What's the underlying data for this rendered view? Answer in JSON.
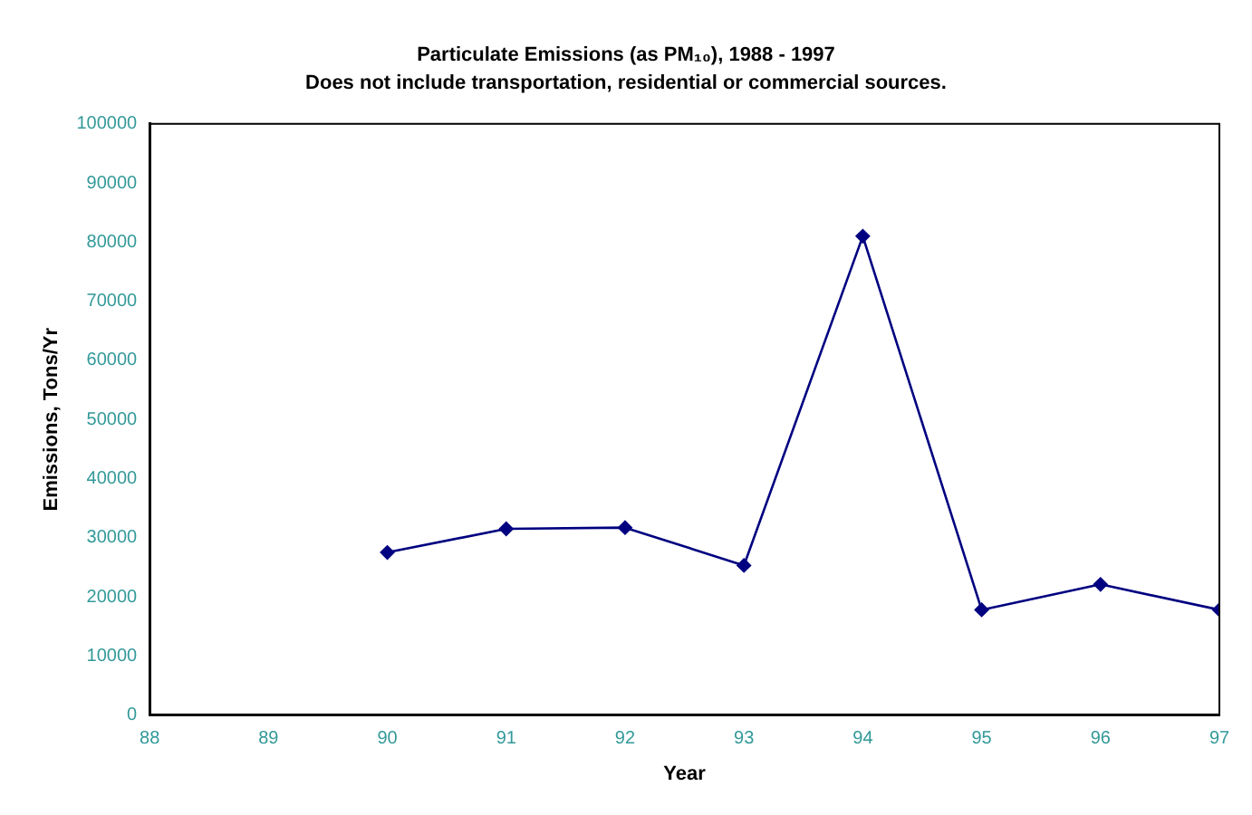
{
  "chart_data": {
    "type": "line",
    "title": "Particulate Emissions (as PM₁₀), 1988 - 1997",
    "subtitle": "Does not include transportation, residential or commercial sources.",
    "xlabel": "Year",
    "ylabel": "Emissions, Tons/Yr",
    "x": [
      90,
      91,
      92,
      93,
      94,
      95,
      96,
      97
    ],
    "series": [
      {
        "color": "#000080",
        "values": [
          27500,
          31500,
          31700,
          25300,
          81000,
          17800,
          22100,
          17800
        ]
      }
    ],
    "xlim": [
      88,
      97
    ],
    "xticks": [
      88,
      89,
      90,
      91,
      92,
      93,
      94,
      95,
      96,
      97
    ],
    "ylim": [
      0,
      100000
    ],
    "yticks": [
      0,
      10000,
      20000,
      30000,
      40000,
      50000,
      60000,
      70000,
      80000,
      90000,
      100000
    ],
    "grid": false,
    "legend": false,
    "marker": "diamond",
    "line_style": "solid"
  }
}
